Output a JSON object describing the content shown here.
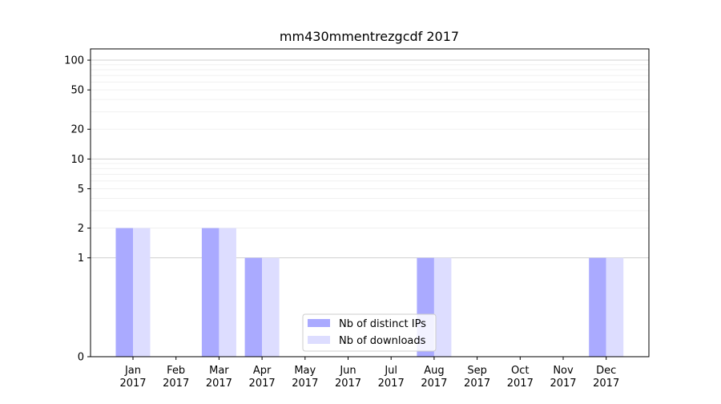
{
  "chart_data": {
    "type": "bar",
    "title": "mm430mmentrezgcdf 2017",
    "xlabel": "",
    "ylabel": "",
    "y_scale": "symlog",
    "ylim": [
      0,
      130
    ],
    "yticks": [
      0,
      1,
      2,
      5,
      10,
      20,
      50,
      100
    ],
    "ytick_labels": [
      "0",
      "1",
      "2",
      "5",
      "10",
      "20",
      "50",
      "100"
    ],
    "categories": [
      [
        "Jan",
        "2017"
      ],
      [
        "Feb",
        "2017"
      ],
      [
        "Mar",
        "2017"
      ],
      [
        "Apr",
        "2017"
      ],
      [
        "May",
        "2017"
      ],
      [
        "Jun",
        "2017"
      ],
      [
        "Jul",
        "2017"
      ],
      [
        "Aug",
        "2017"
      ],
      [
        "Sep",
        "2017"
      ],
      [
        "Oct",
        "2017"
      ],
      [
        "Nov",
        "2017"
      ],
      [
        "Dec",
        "2017"
      ]
    ],
    "series": [
      {
        "name": "Nb of distinct IPs",
        "color": "#aaaaff",
        "values": [
          2,
          0,
          2,
          1,
          0,
          0,
          0,
          1,
          0,
          0,
          0,
          1
        ]
      },
      {
        "name": "Nb of downloads",
        "color": "#ddddff",
        "values": [
          2,
          0,
          2,
          1,
          0,
          0,
          0,
          1,
          0,
          0,
          0,
          1
        ]
      }
    ],
    "grid": true,
    "legend_position": "bottom-center"
  }
}
